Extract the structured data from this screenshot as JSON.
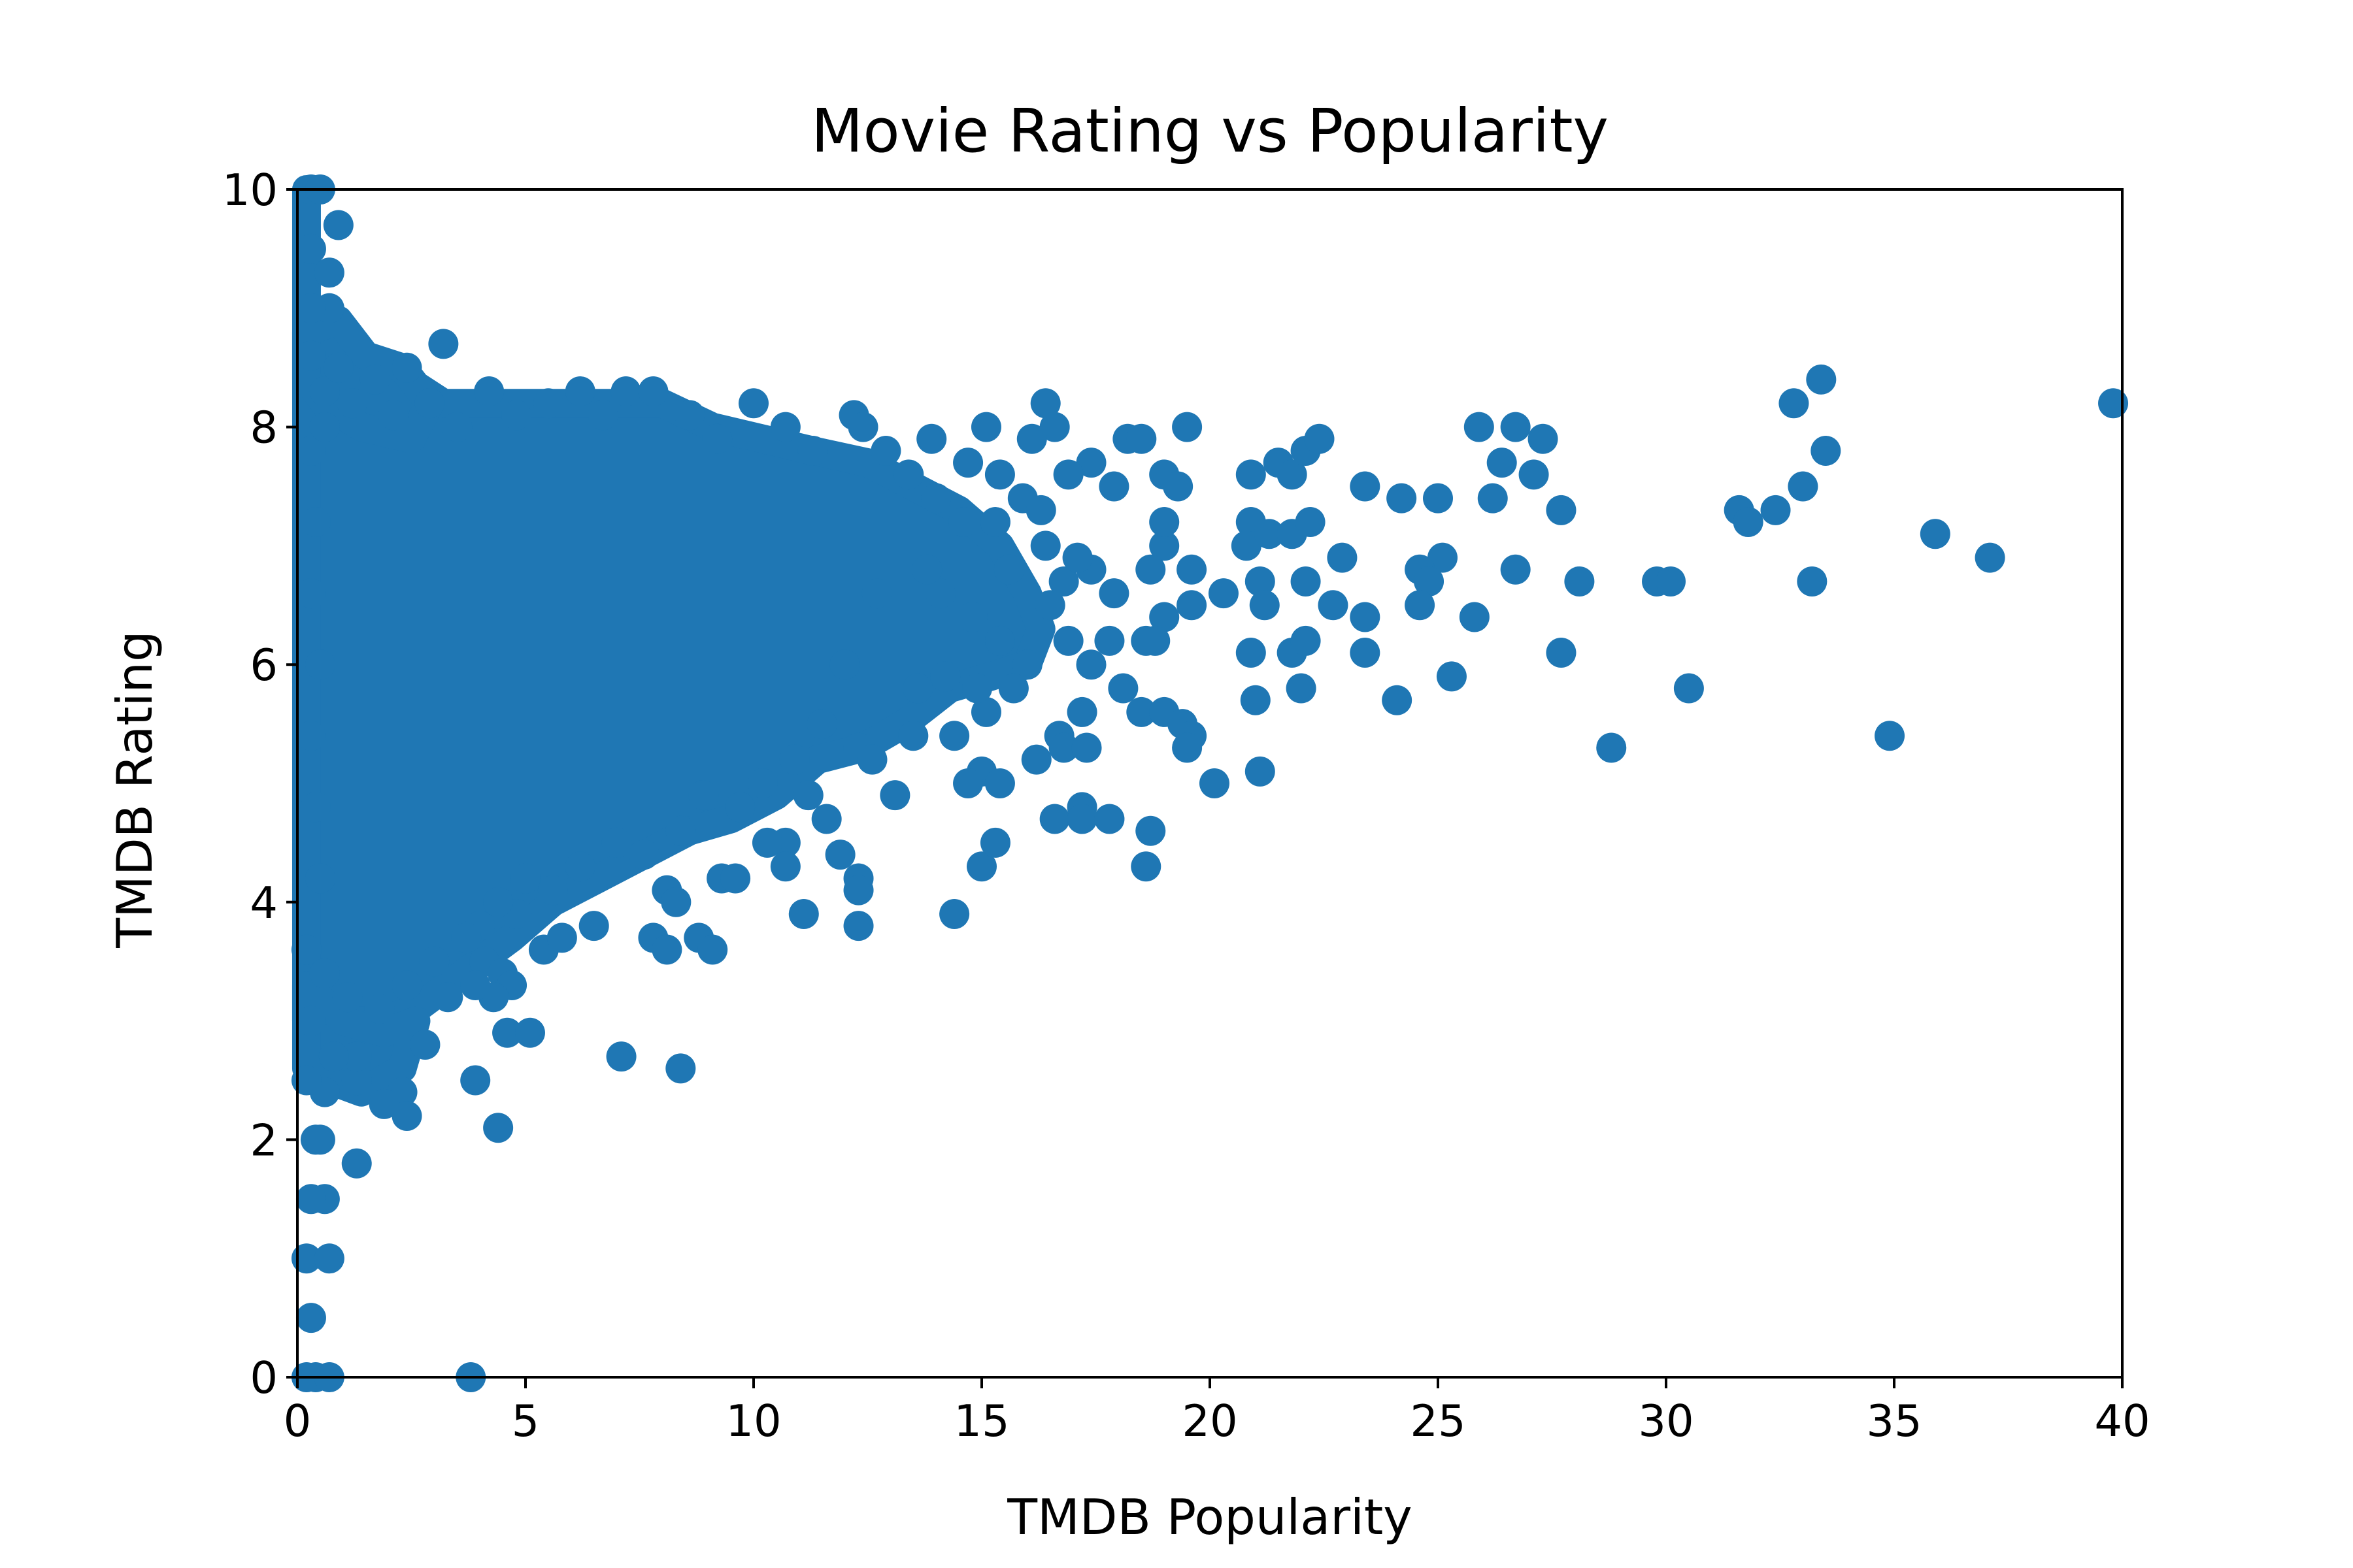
{
  "chart_data": {
    "type": "scatter",
    "title": "Movie Rating vs Popularity",
    "xlabel": "TMDB Popularity",
    "ylabel": "TMDB Rating",
    "xlim": [
      0,
      40
    ],
    "ylim": [
      0,
      10
    ],
    "xticks": [
      0,
      5,
      10,
      15,
      20,
      25,
      30,
      35,
      40
    ],
    "yticks": [
      0,
      2,
      4,
      6,
      8,
      10
    ],
    "grid": false,
    "legend": "none",
    "marker_color": "#1f77b4",
    "series": [
      {
        "points": [
          [
            0.3,
            10.0
          ],
          [
            0.5,
            10.0
          ],
          [
            0.3,
            9.5
          ],
          [
            0.9,
            9.7
          ],
          [
            0.7,
            9.3
          ],
          [
            0.7,
            9.0
          ],
          [
            0.3,
            9.0
          ],
          [
            3.2,
            8.7
          ],
          [
            2.4,
            8.5
          ],
          [
            1.7,
            8.4
          ],
          [
            4.2,
            8.3
          ],
          [
            6.2,
            8.3
          ],
          [
            7.2,
            8.3
          ],
          [
            7.8,
            8.3
          ],
          [
            10.0,
            8.2
          ],
          [
            12.2,
            8.1
          ],
          [
            10.7,
            8.0
          ],
          [
            12.4,
            8.0
          ],
          [
            15.1,
            8.0
          ],
          [
            16.4,
            8.2
          ],
          [
            16.6,
            8.0
          ],
          [
            16.1,
            7.9
          ],
          [
            18.2,
            7.9
          ],
          [
            18.5,
            7.9
          ],
          [
            19.5,
            8.0
          ],
          [
            13.9,
            7.9
          ],
          [
            14.7,
            7.7
          ],
          [
            17.4,
            7.7
          ],
          [
            15.4,
            7.6
          ],
          [
            16.9,
            7.6
          ],
          [
            17.9,
            7.5
          ],
          [
            19.0,
            7.6
          ],
          [
            19.3,
            7.5
          ],
          [
            20.9,
            7.6
          ],
          [
            21.5,
            7.7
          ],
          [
            21.8,
            7.6
          ],
          [
            22.1,
            7.8
          ],
          [
            22.4,
            7.9
          ],
          [
            23.4,
            7.5
          ],
          [
            24.2,
            7.4
          ],
          [
            25.0,
            7.4
          ],
          [
            25.9,
            8.0
          ],
          [
            26.7,
            8.0
          ],
          [
            27.3,
            7.9
          ],
          [
            26.4,
            7.7
          ],
          [
            27.1,
            7.6
          ],
          [
            26.2,
            7.4
          ],
          [
            27.7,
            7.3
          ],
          [
            31.6,
            7.3
          ],
          [
            31.8,
            7.2
          ],
          [
            32.4,
            7.3
          ],
          [
            32.8,
            8.2
          ],
          [
            33.0,
            7.5
          ],
          [
            33.4,
            8.4
          ],
          [
            33.5,
            7.8
          ],
          [
            39.8,
            8.2
          ],
          [
            35.9,
            7.1
          ],
          [
            37.1,
            6.9
          ],
          [
            33.2,
            6.7
          ],
          [
            29.8,
            6.7
          ],
          [
            30.1,
            6.7
          ],
          [
            28.1,
            6.7
          ],
          [
            26.7,
            6.8
          ],
          [
            25.1,
            6.9
          ],
          [
            24.6,
            6.8
          ],
          [
            24.8,
            6.7
          ],
          [
            24.6,
            6.5
          ],
          [
            25.8,
            6.4
          ],
          [
            22.9,
            6.9
          ],
          [
            22.1,
            6.7
          ],
          [
            22.7,
            6.5
          ],
          [
            23.4,
            6.4
          ],
          [
            21.1,
            6.7
          ],
          [
            21.2,
            6.5
          ],
          [
            20.9,
            7.2
          ],
          [
            20.8,
            7.0
          ],
          [
            21.3,
            7.1
          ],
          [
            21.8,
            7.1
          ],
          [
            22.2,
            7.2
          ],
          [
            20.3,
            6.6
          ],
          [
            19.6,
            6.8
          ],
          [
            19.6,
            6.5
          ],
          [
            19.0,
            6.4
          ],
          [
            19.0,
            7.0
          ],
          [
            19.0,
            7.2
          ],
          [
            18.7,
            6.8
          ],
          [
            17.9,
            6.6
          ],
          [
            17.4,
            6.8
          ],
          [
            16.8,
            6.7
          ],
          [
            17.1,
            6.9
          ],
          [
            16.4,
            7.0
          ],
          [
            20.9,
            6.1
          ],
          [
            21.8,
            6.1
          ],
          [
            22.1,
            6.2
          ],
          [
            21.0,
            5.7
          ],
          [
            22.0,
            5.8
          ],
          [
            23.4,
            6.1
          ],
          [
            24.1,
            5.7
          ],
          [
            25.3,
            5.9
          ],
          [
            27.7,
            6.1
          ],
          [
            30.5,
            5.8
          ],
          [
            28.8,
            5.3
          ],
          [
            34.9,
            5.4
          ],
          [
            18.8,
            6.2
          ],
          [
            18.6,
            6.2
          ],
          [
            17.8,
            6.2
          ],
          [
            18.1,
            5.8
          ],
          [
            18.5,
            5.6
          ],
          [
            19.0,
            5.6
          ],
          [
            19.4,
            5.5
          ],
          [
            19.6,
            5.4
          ],
          [
            19.5,
            5.3
          ],
          [
            16.2,
            5.2
          ],
          [
            16.7,
            5.4
          ],
          [
            16.8,
            5.3
          ],
          [
            17.2,
            5.6
          ],
          [
            17.3,
            5.3
          ],
          [
            20.1,
            5.0
          ],
          [
            21.1,
            5.1
          ],
          [
            15.0,
            5.1
          ],
          [
            15.4,
            5.0
          ],
          [
            14.7,
            5.0
          ],
          [
            14.4,
            5.4
          ],
          [
            15.1,
            5.6
          ],
          [
            13.1,
            4.9
          ],
          [
            12.3,
            5.3
          ],
          [
            12.6,
            5.2
          ],
          [
            13.5,
            5.4
          ],
          [
            11.6,
            4.7
          ],
          [
            11.2,
            4.9
          ],
          [
            10.7,
            4.5
          ],
          [
            10.3,
            4.5
          ],
          [
            11.9,
            4.4
          ],
          [
            12.3,
            4.2
          ],
          [
            12.3,
            4.1
          ],
          [
            10.7,
            4.3
          ],
          [
            11.1,
            3.9
          ],
          [
            12.3,
            3.8
          ],
          [
            14.4,
            3.9
          ],
          [
            15.0,
            4.3
          ],
          [
            15.3,
            4.5
          ],
          [
            16.6,
            4.7
          ],
          [
            17.2,
            4.8
          ],
          [
            17.2,
            4.7
          ],
          [
            17.8,
            4.7
          ],
          [
            18.7,
            4.6
          ],
          [
            18.6,
            4.3
          ],
          [
            9.3,
            4.2
          ],
          [
            9.6,
            4.2
          ],
          [
            8.1,
            4.1
          ],
          [
            8.3,
            4.0
          ],
          [
            7.8,
            3.7
          ],
          [
            8.1,
            3.6
          ],
          [
            8.8,
            3.7
          ],
          [
            9.1,
            3.6
          ],
          [
            6.5,
            3.8
          ],
          [
            5.4,
            3.6
          ],
          [
            5.8,
            3.7
          ],
          [
            4.8,
            3.9
          ],
          [
            4.0,
            3.8
          ],
          [
            4.1,
            3.5
          ],
          [
            4.5,
            3.4
          ],
          [
            4.7,
            3.3
          ],
          [
            4.3,
            3.2
          ],
          [
            4.6,
            2.9
          ],
          [
            5.1,
            2.9
          ],
          [
            3.9,
            3.3
          ],
          [
            3.3,
            3.2
          ],
          [
            2.8,
            2.8
          ],
          [
            3.9,
            2.5
          ],
          [
            4.4,
            2.1
          ],
          [
            7.1,
            2.7
          ],
          [
            8.4,
            2.6
          ],
          [
            2.3,
            2.4
          ],
          [
            2.4,
            2.2
          ],
          [
            1.9,
            2.3
          ],
          [
            1.3,
            2.5
          ],
          [
            1.3,
            2.7
          ],
          [
            0.8,
            2.7
          ],
          [
            0.6,
            2.4
          ],
          [
            0.2,
            2.5
          ],
          [
            1.3,
            1.8
          ],
          [
            0.4,
            2.0
          ],
          [
            0.5,
            2.0
          ],
          [
            0.6,
            1.5
          ],
          [
            0.3,
            1.5
          ],
          [
            0.2,
            1.0
          ],
          [
            0.7,
            1.0
          ],
          [
            0.3,
            0.5
          ],
          [
            0.2,
            0.0
          ],
          [
            0.4,
            0.0
          ],
          [
            0.7,
            0.0
          ],
          [
            3.8,
            0.0
          ],
          [
            0.3,
            8.6
          ],
          [
            0.6,
            8.3
          ],
          [
            0.9,
            8.5
          ],
          [
            1.2,
            8.2
          ],
          [
            2.1,
            8.1
          ],
          [
            2.9,
            8.2
          ],
          [
            3.5,
            8.0
          ],
          [
            4.8,
            8.1
          ],
          [
            5.5,
            8.2
          ],
          [
            6.7,
            8.1
          ],
          [
            8.6,
            8.1
          ],
          [
            9.2,
            7.9
          ],
          [
            11.3,
            7.8
          ],
          [
            12.9,
            7.8
          ],
          [
            13.4,
            7.6
          ],
          [
            14.0,
            7.4
          ],
          [
            14.6,
            7.2
          ],
          [
            15.3,
            7.2
          ],
          [
            15.6,
            6.8
          ],
          [
            15.9,
            7.4
          ],
          [
            16.3,
            7.3
          ],
          [
            14.1,
            6.6
          ],
          [
            14.8,
            6.4
          ],
          [
            15.4,
            6.2
          ],
          [
            16.0,
            6.0
          ],
          [
            16.5,
            6.5
          ],
          [
            16.9,
            6.2
          ],
          [
            17.4,
            6.0
          ],
          [
            13.6,
            5.8
          ],
          [
            14.2,
            5.9
          ],
          [
            14.9,
            5.8
          ],
          [
            15.7,
            5.8
          ],
          [
            13.8,
            6.8
          ],
          [
            12.7,
            6.6
          ],
          [
            12.0,
            6.0
          ],
          [
            11.5,
            5.5
          ],
          [
            10.9,
            5.2
          ],
          [
            10.2,
            5.0
          ],
          [
            9.7,
            4.8
          ],
          [
            8.9,
            4.9
          ],
          [
            8.4,
            4.6
          ],
          [
            7.6,
            4.4
          ],
          [
            7.0,
            4.5
          ],
          [
            6.2,
            4.3
          ],
          [
            5.6,
            4.1
          ],
          [
            5.0,
            4.2
          ],
          [
            4.4,
            4.0
          ],
          [
            3.7,
            3.7
          ],
          [
            3.0,
            3.5
          ],
          [
            2.4,
            3.3
          ],
          [
            1.8,
            3.1
          ],
          [
            1.1,
            3.2
          ],
          [
            0.6,
            3.4
          ],
          [
            0.3,
            3.0
          ],
          [
            0.2,
            3.6
          ],
          [
            0.5,
            4.2
          ],
          [
            0.4,
            4.8
          ],
          [
            0.3,
            5.4
          ],
          [
            0.5,
            6.0
          ],
          [
            0.3,
            6.6
          ],
          [
            0.4,
            7.2
          ],
          [
            0.3,
            7.8
          ],
          [
            0.6,
            8.0
          ]
        ]
      }
    ],
    "dense_regions": [
      {
        "points": [
          [
            0.2,
            10
          ],
          [
            0.2,
            8.4
          ],
          [
            0.6,
            8.7
          ],
          [
            1.5,
            8.4
          ],
          [
            2.4,
            8.4
          ],
          [
            3.2,
            8.2
          ],
          [
            4.3,
            8.2
          ],
          [
            5.6,
            8.2
          ],
          [
            6.8,
            8.2
          ],
          [
            8.0,
            8.2
          ],
          [
            9.1,
            8.0
          ],
          [
            10.2,
            7.9
          ],
          [
            11.3,
            7.8
          ],
          [
            12.5,
            7.7
          ],
          [
            13.5,
            7.5
          ],
          [
            14.5,
            7.3
          ],
          [
            15.4,
            7.0
          ],
          [
            16.0,
            6.6
          ],
          [
            16.3,
            6.3
          ],
          [
            16.0,
            6.0
          ],
          [
            15.2,
            5.9
          ],
          [
            14.3,
            5.8
          ],
          [
            13.3,
            5.5
          ],
          [
            12.4,
            5.3
          ],
          [
            11.4,
            5.2
          ],
          [
            10.5,
            4.9
          ],
          [
            9.5,
            4.7
          ],
          [
            8.6,
            4.6
          ],
          [
            7.6,
            4.4
          ],
          [
            6.6,
            4.2
          ],
          [
            5.6,
            4.0
          ],
          [
            4.7,
            3.7
          ],
          [
            4.0,
            3.5
          ],
          [
            3.3,
            3.3
          ],
          [
            2.6,
            3.1
          ],
          [
            1.8,
            3.0
          ],
          [
            1.1,
            3.0
          ],
          [
            0.5,
            3.0
          ],
          [
            0.2,
            3.0
          ]
        ]
      },
      {
        "points": [
          [
            0.2,
            8.8
          ],
          [
            0.9,
            8.9
          ],
          [
            1.5,
            8.6
          ],
          [
            2.3,
            8.5
          ],
          [
            2.9,
            8.2
          ],
          [
            2.5,
            7.9
          ],
          [
            1.4,
            8.0
          ],
          [
            0.6,
            8.2
          ],
          [
            0.2,
            8.4
          ]
        ]
      },
      {
        "points": [
          [
            0.2,
            3.3
          ],
          [
            1.0,
            3.0
          ],
          [
            1.9,
            2.9
          ],
          [
            2.6,
            3.0
          ],
          [
            2.3,
            2.6
          ],
          [
            1.4,
            2.4
          ],
          [
            0.7,
            2.5
          ],
          [
            0.2,
            2.6
          ]
        ]
      }
    ]
  }
}
